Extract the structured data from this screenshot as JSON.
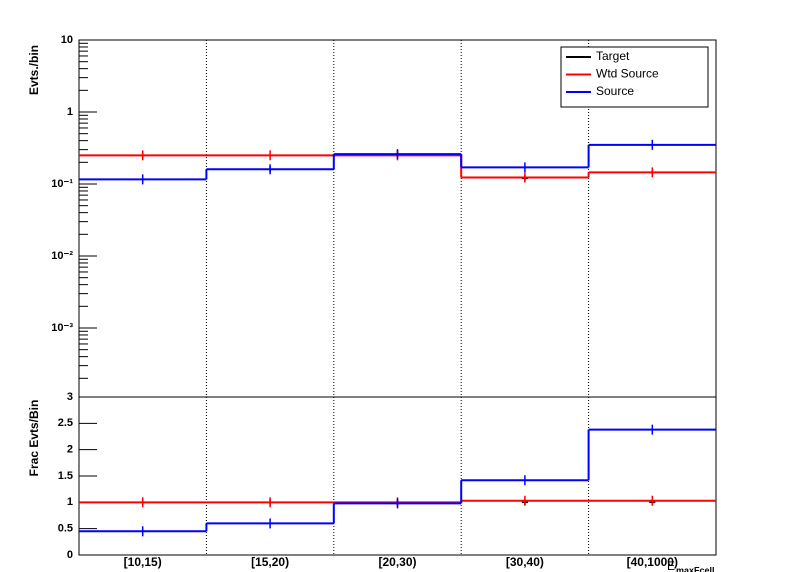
{
  "chart_data": [
    {
      "type": "step",
      "ylabel": "Evts./bin",
      "log_y": true,
      "ylim": [
        0.00011,
        10
      ],
      "yticks": [
        {
          "value": 10,
          "label": "10"
        },
        {
          "value": 1,
          "label": "1"
        },
        {
          "value": 0.1,
          "label": "10⁻¹"
        },
        {
          "value": 0.01,
          "label": "10⁻²"
        },
        {
          "value": 0.001,
          "label": "10⁻³"
        }
      ],
      "legend": "top-right",
      "series": [
        {
          "name": "Target",
          "color": "#000000",
          "style": "points",
          "values": [
            0.25,
            0.16,
            0.26,
            0.12,
            0.145
          ]
        },
        {
          "name": "Wtd Source",
          "color": "#ff0000",
          "style": "step",
          "values": [
            0.25,
            0.25,
            0.25,
            0.123,
            0.145
          ]
        },
        {
          "name": "Source",
          "color": "#0000ff",
          "style": "step",
          "values": [
            0.116,
            0.16,
            0.26,
            0.17,
            0.35
          ]
        }
      ]
    },
    {
      "type": "step",
      "ylabel": "Frac Evts/Bin",
      "ylim": [
        0,
        3
      ],
      "yticks": [
        0,
        0.5,
        1,
        1.5,
        2,
        2.5,
        3
      ],
      "categories": [
        "[10,15)",
        "[15,20)",
        "[20,30)",
        "[30,40)",
        "[40,1000)"
      ],
      "xlabel": "E",
      "xlabel_sub": "maxFcell",
      "series": [
        {
          "color": "#000000",
          "style": "points",
          "values": [
            1,
            1,
            1,
            1,
            1
          ]
        },
        {
          "color": "#ff0000",
          "style": "step",
          "values": [
            1,
            1,
            1,
            1.03,
            1.03
          ]
        },
        {
          "color": "#0000ff",
          "style": "step",
          "values": [
            0.45,
            0.6,
            0.98,
            1.42,
            2.38
          ]
        }
      ]
    }
  ]
}
